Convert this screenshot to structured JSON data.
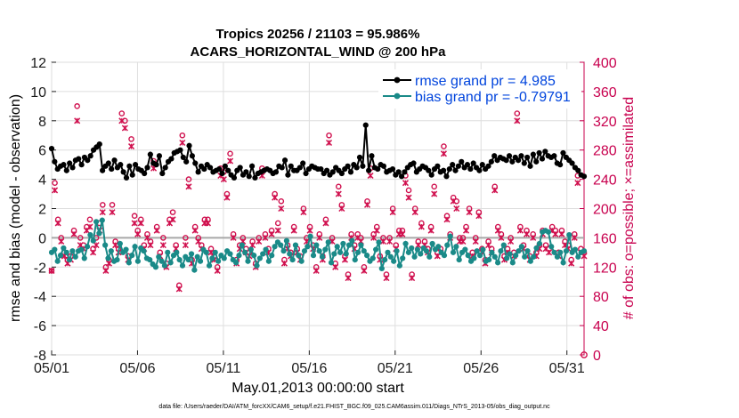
{
  "chart_data": {
    "type": "line",
    "title_line1": "Tropics 20256 / 21103 = 95.986%",
    "title_line2": "ACARS_HORIZONTAL_WIND @ 200 hPa",
    "xlabel": "May.01,2013 00:00:00 start",
    "ylabel": "rmse and bias (model - observation)",
    "ylabel_right": "# of obs: o=possible; ×=assimilated",
    "footnote": "data file: /Users/raeder/DAI/ATM_forcXX/CAM6_setup/f.e21.FHIST_BGC.f09_025.CAM6assim.011/Diags_NTrS_2013-05/obs_diag_output.nc",
    "xlim": [
      1,
      32
    ],
    "ylim": [
      -8,
      12
    ],
    "ylim_right": [
      0,
      400
    ],
    "xticks": [
      1,
      6,
      11,
      16,
      21,
      26,
      31
    ],
    "xtick_labels": [
      "05/01",
      "05/06",
      "05/11",
      "05/16",
      "05/21",
      "05/26",
      "05/31"
    ],
    "yticks": [
      -8,
      -6,
      -4,
      -2,
      0,
      2,
      4,
      6,
      8,
      10,
      12
    ],
    "yticks_right": [
      0,
      40,
      80,
      120,
      160,
      200,
      240,
      280,
      320,
      360,
      400
    ],
    "series": [
      {
        "name": "rmse grand pr = 4.985",
        "color": "#000000",
        "values": [
          6.1,
          5.2,
          4.7,
          4.9,
          5.0,
          4.6,
          5.1,
          4.8,
          5.3,
          5.4,
          5.0,
          5.5,
          5.3,
          5.6,
          6.0,
          6.2,
          6.4,
          4.6,
          4.9,
          5.1,
          4.7,
          5.3,
          4.8,
          5.0,
          4.5,
          4.1,
          4.9,
          4.3,
          5.0,
          4.7,
          4.6,
          4.4,
          4.8,
          5.7,
          5.1,
          5.0,
          5.6,
          4.4,
          4.8,
          5.2,
          5.4,
          5.8,
          5.9,
          6.0,
          5.5,
          5.2,
          6.3,
          5.6,
          5.1,
          4.5,
          4.9,
          4.7,
          5.0,
          4.8,
          4.5,
          4.6,
          4.7,
          4.4,
          4.9,
          4.6,
          4.3,
          4.1,
          4.6,
          4.8,
          4.3,
          4.5,
          4.2,
          4.9,
          4.1,
          4.4,
          4.5,
          4.6,
          4.7,
          4.6,
          4.4,
          4.5,
          4.9,
          4.8,
          5.3,
          4.3,
          4.9,
          4.6,
          4.6,
          4.8,
          5.1,
          4.4,
          4.7,
          4.9,
          4.8,
          4.7,
          4.7,
          4.4,
          4.6,
          4.3,
          4.5,
          4.8,
          4.6,
          4.4,
          4.7,
          4.9,
          4.5,
          5.0,
          4.8,
          5.5,
          4.9,
          7.7,
          4.6,
          5.6,
          4.8,
          4.7,
          5.0,
          4.9,
          4.5,
          4.6,
          4.7,
          4.3,
          4.5,
          4.2,
          4.5,
          4.8,
          5.0,
          5.1,
          4.5,
          4.7,
          4.9,
          4.8,
          4.6,
          4.3,
          4.7,
          4.9,
          4.5,
          4.6,
          4.2,
          4.7,
          5.0,
          4.6,
          4.9,
          5.2,
          4.8,
          5.0,
          4.7,
          5.1,
          4.8,
          4.6,
          5.0,
          4.7,
          4.9,
          5.2,
          5.6,
          5.3,
          5.5,
          5.4,
          5.3,
          5.6,
          5.2,
          5.5,
          5.3,
          5.6,
          5.1,
          5.5,
          4.9,
          5.7,
          5.2,
          5.8,
          5.4,
          5.9,
          5.6,
          5.5,
          5.6,
          5.1,
          5.0,
          5.8,
          5.5,
          5.3,
          5.1,
          4.8,
          4.6,
          4.3,
          4.2
        ]
      },
      {
        "name": "bias grand pr = -0.79791",
        "color": "#1a8a88",
        "values": [
          -1.0,
          -0.8,
          -1.6,
          -1.2,
          -0.7,
          -1.0,
          -1.5,
          -0.9,
          -1.3,
          -0.9,
          -0.8,
          -1.4,
          -0.6,
          0.2,
          -0.2,
          1.1,
          0.3,
          1.2,
          -0.5,
          -1.4,
          -0.9,
          -1.6,
          -1.5,
          -0.4,
          -1.0,
          -0.8,
          -1.7,
          -1.2,
          -0.6,
          -1.6,
          -0.7,
          -0.9,
          -1.4,
          -1.5,
          -1.8,
          -2.0,
          -1.3,
          -1.6,
          -1.9,
          -1.0,
          -1.7,
          -1.2,
          -1.0,
          -1.5,
          -1.9,
          -1.3,
          -1.5,
          -1.1,
          -2.2,
          -1.3,
          -1.6,
          -0.8,
          -1.0,
          -1.9,
          -1.4,
          -1.0,
          -1.6,
          -1.2,
          -1.4,
          -0.9,
          -1.1,
          -1.5,
          -1.7,
          -1.2,
          -0.5,
          -1.0,
          -1.6,
          -0.8,
          -1.2,
          -1.9,
          -1.4,
          -1.1,
          -0.8,
          -1.6,
          -1.2,
          -0.6,
          -0.3,
          -0.5,
          -0.9,
          -0.2,
          -1.1,
          -1.5,
          -0.5,
          -1.2,
          -1.6,
          -0.9,
          -0.6,
          0.1,
          -1.2,
          -0.5,
          -0.9,
          -1.3,
          -0.8,
          -0.3,
          -1.7,
          -1.1,
          -0.6,
          -1.0,
          -0.4,
          -1.1,
          -0.5,
          -0.2,
          -1.5,
          -1.0,
          -0.5,
          -0.9,
          -1.2,
          -1.6,
          -1.4,
          -0.8,
          -0.3,
          -2.1,
          -1.5,
          -1.0,
          -1.3,
          -1.6,
          -0.9,
          -1.9,
          -1.4,
          -0.4,
          -1.0,
          -0.7,
          -1.3,
          -0.8,
          -1.1,
          -0.7,
          -0.9,
          -1.3,
          -0.4,
          -0.8,
          -0.6,
          -1.0,
          -1.2,
          -0.5,
          0.1,
          -1.0,
          -0.6,
          -1.5,
          -1.0,
          -0.8,
          -1.2,
          -1.6,
          -1.4,
          -0.9,
          -1.2,
          -0.8,
          -1.6,
          -1.5,
          -1.0,
          -1.3,
          -1.7,
          -0.9,
          -0.5,
          -1.4,
          -1.1,
          -1.7,
          -1.2,
          -0.9,
          -0.6,
          -1.3,
          -0.9,
          -1.6,
          -1.3,
          -0.7,
          -0.4,
          0.4,
          0.5,
          0.4,
          -0.6,
          -1.0,
          -1.3,
          -1.0,
          -1.7,
          -0.9,
          0.2,
          -1.0,
          -0.8,
          -1.3,
          -1.0,
          -0.9
        ]
      }
    ],
    "obs_possible": {
      "marker": "o",
      "color": "#d0104e",
      "values": [
        115,
        235,
        185,
        160,
        140,
        130,
        135,
        170,
        340,
        160,
        150,
        175,
        185,
        145,
        160,
        180,
        205,
        120,
        130,
        205,
        155,
        145,
        330,
        320,
        135,
        295,
        190,
        170,
        185,
        150,
        165,
        155,
        265,
        175,
        140,
        160,
        125,
        185,
        195,
        150,
        95,
        300,
        160,
        240,
        130,
        175,
        160,
        150,
        185,
        185,
        145,
        135,
        120,
        255,
        250,
        220,
        275,
        165,
        130,
        150,
        160,
        145,
        140,
        155,
        125,
        160,
        255,
        165,
        145,
        170,
        220,
        180,
        210,
        130,
        150,
        140,
        175,
        145,
        135,
        200,
        160,
        175,
        150,
        120,
        165,
        135,
        185,
        300,
        160,
        125,
        230,
        205,
        135,
        110,
        165,
        150,
        165,
        160,
        120,
        210,
        255,
        165,
        175,
        135,
        160,
        110,
        160,
        200,
        150,
        170,
        170,
        245,
        225,
        110,
        200,
        155,
        180,
        155,
        145,
        175,
        230,
        140,
        145,
        285,
        190,
        165,
        215,
        210,
        160,
        160,
        175,
        200,
        140,
        160,
        195,
        145,
        130,
        155,
        145,
        230,
        175,
        165,
        135,
        145,
        160,
        140,
        330,
        175,
        150,
        170,
        135,
        165,
        140,
        150,
        170,
        150,
        145,
        175,
        170,
        140,
        170,
        155,
        150,
        130,
        165,
        245,
        145,
        140
      ]
    },
    "obs_assimilated": {
      "marker": "x",
      "color": "#d0104e",
      "values": [
        115,
        225,
        180,
        155,
        135,
        125,
        130,
        165,
        320,
        150,
        145,
        170,
        175,
        140,
        150,
        170,
        195,
        115,
        125,
        195,
        150,
        140,
        320,
        310,
        130,
        285,
        180,
        165,
        180,
        145,
        160,
        150,
        255,
        170,
        135,
        150,
        120,
        180,
        185,
        145,
        90,
        290,
        150,
        230,
        125,
        170,
        155,
        145,
        180,
        180,
        140,
        130,
        115,
        245,
        240,
        215,
        265,
        160,
        125,
        145,
        155,
        140,
        135,
        150,
        120,
        155,
        245,
        160,
        140,
        165,
        215,
        170,
        200,
        125,
        145,
        135,
        170,
        140,
        130,
        195,
        155,
        170,
        145,
        115,
        160,
        130,
        180,
        290,
        155,
        120,
        220,
        200,
        130,
        105,
        160,
        145,
        160,
        155,
        115,
        205,
        245,
        160,
        170,
        130,
        155,
        105,
        155,
        195,
        145,
        165,
        165,
        235,
        215,
        105,
        195,
        150,
        175,
        150,
        140,
        170,
        220,
        135,
        140,
        275,
        185,
        160,
        210,
        200,
        155,
        155,
        170,
        195,
        135,
        155,
        190,
        140,
        125,
        150,
        140,
        225,
        170,
        160,
        130,
        140,
        155,
        135,
        320,
        170,
        145,
        165,
        130,
        160,
        135,
        145,
        165,
        145,
        140,
        170,
        165,
        135,
        165,
        150,
        145,
        125,
        160,
        235,
        140,
        135
      ]
    }
  }
}
